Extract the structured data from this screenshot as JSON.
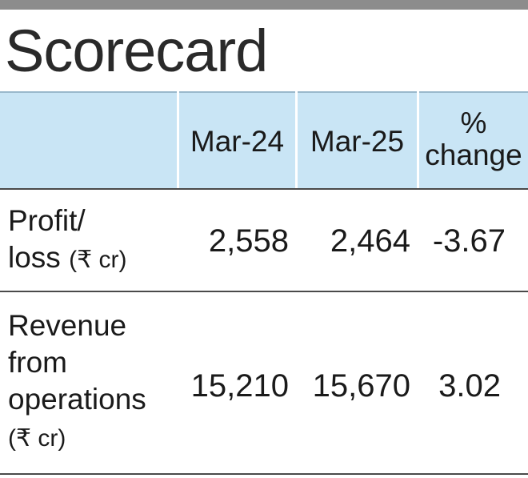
{
  "title": "Scorecard",
  "chart_data": {
    "type": "table",
    "title": "Scorecard",
    "columns": [
      "",
      "Mar-24",
      "Mar-25",
      "% change"
    ],
    "rows": [
      {
        "label_lines": [
          "Profit/",
          "loss"
        ],
        "unit": "(₹ cr)",
        "values": [
          "2,558",
          "2,464",
          "-3.67"
        ]
      },
      {
        "label_lines": [
          "Revenue",
          "from",
          "operations"
        ],
        "unit": "(₹ cr)",
        "values": [
          "15,210",
          "15,670",
          "3.02"
        ]
      }
    ]
  },
  "header": {
    "col1": "Mar-24",
    "col2": "Mar-25",
    "col3_line1": "%",
    "col3_line2": "change"
  },
  "colors": {
    "header_band": "#c9e5f5",
    "top_rule": "#8c8c8c"
  }
}
